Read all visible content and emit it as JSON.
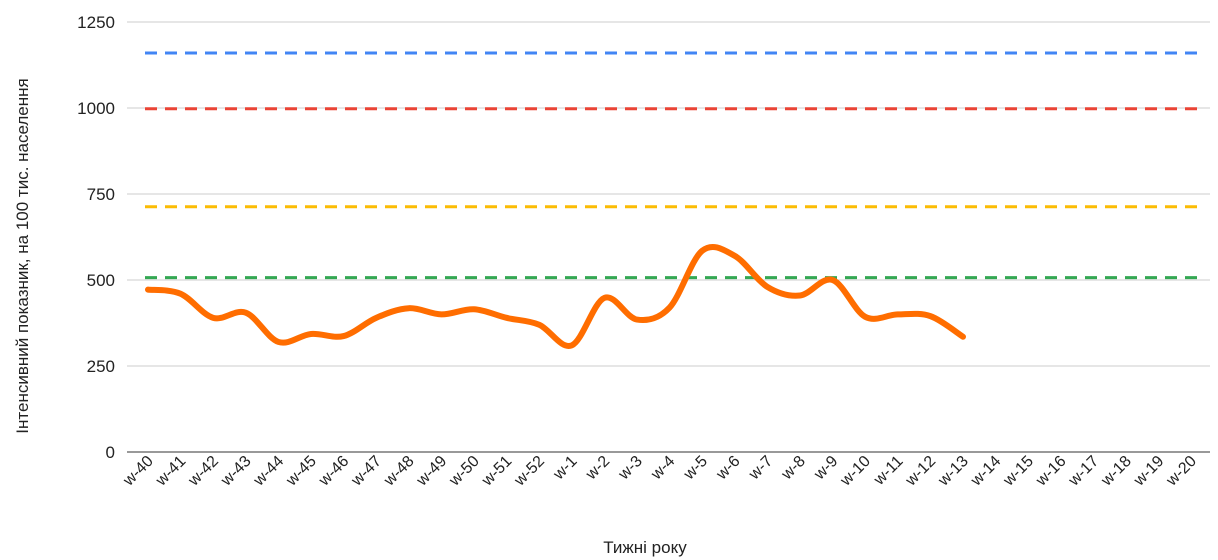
{
  "chart_data": {
    "type": "line",
    "xlabel": "Тижні року",
    "ylabel": "Інтенсивний показник, на 100 тис. населення",
    "ylim": [
      0,
      1250
    ],
    "yticks": [
      "0",
      "250",
      "500",
      "750",
      "1000",
      "1250"
    ],
    "grid": true,
    "categories": [
      "w-40",
      "w-41",
      "w-42",
      "w-43",
      "w-44",
      "w-45",
      "w-46",
      "w-47",
      "w-48",
      "w-49",
      "w-50",
      "w-51",
      "w-52",
      "w-1",
      "w-2",
      "w-3",
      "w-4",
      "w-5",
      "w-6",
      "w-7",
      "w-8",
      "w-9",
      "w-10",
      "w-11",
      "w-12",
      "w-13",
      "w-14",
      "w-15",
      "w-16",
      "w-17",
      "w-18",
      "w-19",
      "w-20"
    ],
    "series": [
      {
        "color": "#ff6d00",
        "style": "solid-smooth",
        "values": [
          472,
          460,
          390,
          405,
          320,
          343,
          337,
          390,
          418,
          400,
          415,
          390,
          370,
          310,
          448,
          385,
          420,
          585,
          570,
          480,
          455,
          500,
          393,
          400,
          395,
          335,
          null,
          null,
          null,
          null,
          null,
          null,
          null
        ]
      }
    ],
    "thresholds": [
      {
        "value": 1160,
        "color": "#4285f4"
      },
      {
        "value": 998,
        "color": "#ea4335"
      },
      {
        "value": 713,
        "color": "#fbbc04"
      },
      {
        "value": 507,
        "color": "#34a853"
      }
    ]
  }
}
